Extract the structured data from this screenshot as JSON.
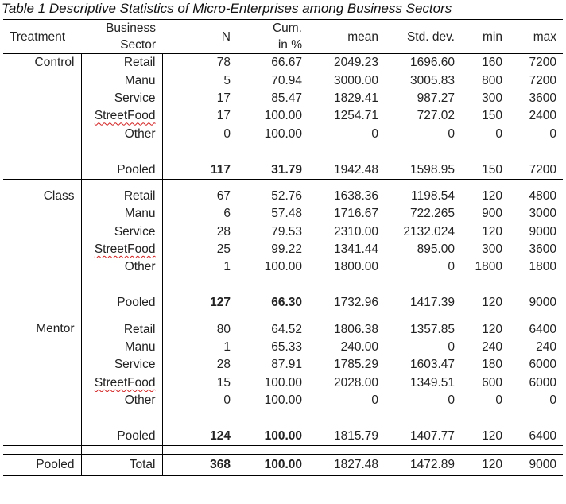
{
  "caption": "Table 1 Descriptive Statistics of Micro-Enterprises among Business Sectors",
  "headers": {
    "treatment": "Treatment",
    "sector_line1": "Business",
    "sector_line2": "Sector",
    "n": "N",
    "cum_line1": "Cum.",
    "cum_line2": "in %",
    "mean": "mean",
    "sd": "Std. dev.",
    "min": "min",
    "max": "max"
  },
  "groups": [
    {
      "treatment": "Control",
      "rows": [
        {
          "sector": "Retail",
          "n": "78",
          "cum": "66.67",
          "mean": "2049.23",
          "sd": "1696.60",
          "min": "160",
          "max": "7200"
        },
        {
          "sector": "Manu",
          "n": "5",
          "cum": "70.94",
          "mean": "3000.00",
          "sd": "3005.83",
          "min": "800",
          "max": "7200"
        },
        {
          "sector": "Service",
          "n": "17",
          "cum": "85.47",
          "mean": "1829.41",
          "sd": "987.27",
          "min": "300",
          "max": "3600"
        },
        {
          "sector": "StreetFood",
          "n": "17",
          "cum": "100.00",
          "mean": "1254.71",
          "sd": "727.02",
          "min": "150",
          "max": "2400"
        },
        {
          "sector": "Other",
          "n": "0",
          "cum": "100.00",
          "mean": "0",
          "sd": "0",
          "min": "0",
          "max": "0"
        }
      ],
      "pooled": {
        "sector": "Pooled",
        "n": "117",
        "cum": "31.79",
        "mean": "1942.48",
        "sd": "1598.95",
        "min": "150",
        "max": "7200"
      }
    },
    {
      "treatment": "Class",
      "rows": [
        {
          "sector": "Retail",
          "n": "67",
          "cum": "52.76",
          "mean": "1638.36",
          "sd": "1198.54",
          "min": "120",
          "max": "4800"
        },
        {
          "sector": "Manu",
          "n": "6",
          "cum": "57.48",
          "mean": "1716.67",
          "sd": "722.265",
          "min": "900",
          "max": "3000"
        },
        {
          "sector": "Service",
          "n": "28",
          "cum": "79.53",
          "mean": "2310.00",
          "sd": "2132.024",
          "min": "120",
          "max": "9000"
        },
        {
          "sector": "StreetFood",
          "n": "25",
          "cum": "99.22",
          "mean": "1341.44",
          "sd": "895.00",
          "min": "300",
          "max": "3600"
        },
        {
          "sector": "Other",
          "n": "1",
          "cum": "100.00",
          "mean": "1800.00",
          "sd": "0",
          "min": "1800",
          "max": "1800"
        }
      ],
      "pooled": {
        "sector": "Pooled",
        "n": "127",
        "cum": "66.30",
        "mean": "1732.96",
        "sd": "1417.39",
        "min": "120",
        "max": "9000"
      }
    },
    {
      "treatment": "Mentor",
      "rows": [
        {
          "sector": "Retail",
          "n": "80",
          "cum": "64.52",
          "mean": "1806.38",
          "sd": "1357.85",
          "min": "120",
          "max": "6400"
        },
        {
          "sector": "Manu",
          "n": "1",
          "cum": "65.33",
          "mean": "240.00",
          "sd": "0",
          "min": "240",
          "max": "240"
        },
        {
          "sector": "Service",
          "n": "28",
          "cum": "87.91",
          "mean": "1785.29",
          "sd": "1603.47",
          "min": "180",
          "max": "6000"
        },
        {
          "sector": "StreetFood",
          "n": "15",
          "cum": "100.00",
          "mean": "2028.00",
          "sd": "1349.51",
          "min": "600",
          "max": "6000"
        },
        {
          "sector": "Other",
          "n": "0",
          "cum": "100.00",
          "mean": "0",
          "sd": "0",
          "min": "0",
          "max": "0"
        }
      ],
      "pooled": {
        "sector": "Pooled",
        "n": "124",
        "cum": "100.00",
        "mean": "1815.79",
        "sd": "1407.77",
        "min": "120",
        "max": "6400"
      }
    }
  ],
  "total": {
    "treatment": "Pooled",
    "sector": "Total",
    "n": "368",
    "cum": "100.00",
    "mean": "1827.48",
    "sd": "1472.89",
    "min": "120",
    "max": "9000"
  },
  "spellcheck_flag_color": "#d21f1f"
}
